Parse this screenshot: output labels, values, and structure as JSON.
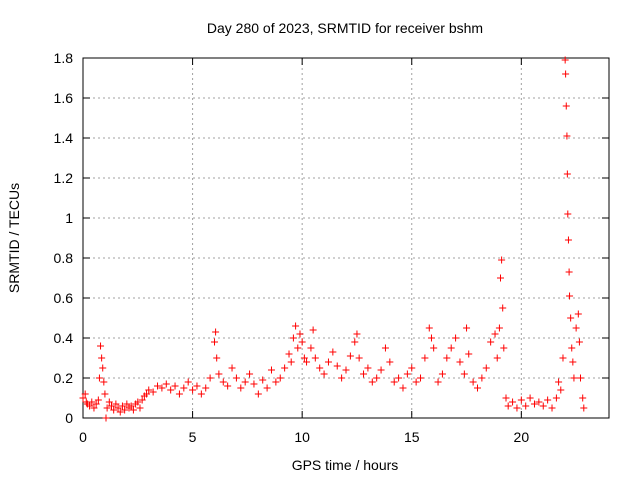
{
  "chart_data": {
    "type": "scatter",
    "title": "Day 280 of 2023, SRMTID for receiver bshm",
    "xlabel": "GPS time / hours",
    "ylabel": "SRMTID / TECUs",
    "xlim": [
      0,
      24.0
    ],
    "ylim": [
      0,
      1.8
    ],
    "xticks": [
      0,
      5,
      10,
      15,
      20
    ],
    "xtick_labels": [
      "0",
      "5",
      "10",
      "15",
      "20"
    ],
    "yticks": [
      0,
      0.2,
      0.4,
      0.6,
      0.8,
      1,
      1.2,
      1.4,
      1.6,
      1.8
    ],
    "ytick_labels": [
      "0",
      "0.2",
      "0.4",
      "0.6",
      "0.8",
      "1",
      "1.2",
      "1.4",
      "1.6",
      "1.8"
    ],
    "grid": true,
    "marker": "+",
    "color": "#ff0000",
    "series": [
      {
        "name": "SRMTID",
        "points": [
          [
            0.0,
            0.1
          ],
          [
            0.1,
            0.12
          ],
          [
            0.15,
            0.08
          ],
          [
            0.2,
            0.07
          ],
          [
            0.3,
            0.06
          ],
          [
            0.4,
            0.08
          ],
          [
            0.5,
            0.05
          ],
          [
            0.6,
            0.07
          ],
          [
            0.7,
            0.09
          ],
          [
            0.75,
            0.2
          ],
          [
            0.8,
            0.36
          ],
          [
            0.85,
            0.3
          ],
          [
            0.9,
            0.25
          ],
          [
            0.95,
            0.18
          ],
          [
            1.0,
            0.12
          ],
          [
            1.05,
            0.0
          ],
          [
            1.1,
            0.05
          ],
          [
            1.2,
            0.08
          ],
          [
            1.3,
            0.06
          ],
          [
            1.4,
            0.04
          ],
          [
            1.5,
            0.07
          ],
          [
            1.6,
            0.05
          ],
          [
            1.7,
            0.03
          ],
          [
            1.8,
            0.06
          ],
          [
            1.9,
            0.04
          ],
          [
            2.0,
            0.07
          ],
          [
            2.1,
            0.05
          ],
          [
            2.2,
            0.06
          ],
          [
            2.3,
            0.04
          ],
          [
            2.4,
            0.07
          ],
          [
            2.5,
            0.08
          ],
          [
            2.6,
            0.05
          ],
          [
            2.7,
            0.09
          ],
          [
            2.8,
            0.11
          ],
          [
            2.9,
            0.12
          ],
          [
            3.0,
            0.14
          ],
          [
            3.2,
            0.13
          ],
          [
            3.4,
            0.16
          ],
          [
            3.6,
            0.15
          ],
          [
            3.8,
            0.17
          ],
          [
            4.0,
            0.14
          ],
          [
            4.2,
            0.16
          ],
          [
            4.4,
            0.12
          ],
          [
            4.6,
            0.15
          ],
          [
            4.8,
            0.18
          ],
          [
            5.0,
            0.14
          ],
          [
            5.2,
            0.16
          ],
          [
            5.4,
            0.12
          ],
          [
            5.6,
            0.15
          ],
          [
            5.8,
            0.2
          ],
          [
            6.0,
            0.38
          ],
          [
            6.05,
            0.43
          ],
          [
            6.1,
            0.3
          ],
          [
            6.2,
            0.22
          ],
          [
            6.4,
            0.18
          ],
          [
            6.6,
            0.16
          ],
          [
            6.8,
            0.25
          ],
          [
            7.0,
            0.2
          ],
          [
            7.2,
            0.15
          ],
          [
            7.4,
            0.18
          ],
          [
            7.6,
            0.22
          ],
          [
            7.8,
            0.17
          ],
          [
            8.0,
            0.12
          ],
          [
            8.2,
            0.19
          ],
          [
            8.4,
            0.15
          ],
          [
            8.6,
            0.24
          ],
          [
            8.8,
            0.18
          ],
          [
            9.0,
            0.2
          ],
          [
            9.2,
            0.25
          ],
          [
            9.4,
            0.32
          ],
          [
            9.5,
            0.28
          ],
          [
            9.6,
            0.4
          ],
          [
            9.7,
            0.46
          ],
          [
            9.8,
            0.35
          ],
          [
            9.9,
            0.42
          ],
          [
            10.0,
            0.38
          ],
          [
            10.1,
            0.3
          ],
          [
            10.2,
            0.28
          ],
          [
            10.4,
            0.35
          ],
          [
            10.5,
            0.44
          ],
          [
            10.6,
            0.3
          ],
          [
            10.8,
            0.25
          ],
          [
            11.0,
            0.22
          ],
          [
            11.2,
            0.28
          ],
          [
            11.4,
            0.33
          ],
          [
            11.6,
            0.26
          ],
          [
            11.8,
            0.2
          ],
          [
            12.0,
            0.24
          ],
          [
            12.2,
            0.31
          ],
          [
            12.4,
            0.38
          ],
          [
            12.5,
            0.42
          ],
          [
            12.6,
            0.3
          ],
          [
            12.8,
            0.22
          ],
          [
            13.0,
            0.25
          ],
          [
            13.2,
            0.18
          ],
          [
            13.4,
            0.2
          ],
          [
            13.6,
            0.24
          ],
          [
            13.8,
            0.35
          ],
          [
            14.0,
            0.28
          ],
          [
            14.2,
            0.18
          ],
          [
            14.4,
            0.2
          ],
          [
            14.6,
            0.15
          ],
          [
            14.8,
            0.22
          ],
          [
            15.0,
            0.25
          ],
          [
            15.2,
            0.18
          ],
          [
            15.4,
            0.2
          ],
          [
            15.6,
            0.3
          ],
          [
            15.8,
            0.45
          ],
          [
            15.9,
            0.4
          ],
          [
            16.0,
            0.35
          ],
          [
            16.2,
            0.18
          ],
          [
            16.4,
            0.22
          ],
          [
            16.6,
            0.3
          ],
          [
            16.8,
            0.35
          ],
          [
            17.0,
            0.4
          ],
          [
            17.2,
            0.28
          ],
          [
            17.4,
            0.22
          ],
          [
            17.5,
            0.45
          ],
          [
            17.6,
            0.32
          ],
          [
            17.8,
            0.18
          ],
          [
            18.0,
            0.15
          ],
          [
            18.2,
            0.2
          ],
          [
            18.4,
            0.25
          ],
          [
            18.6,
            0.38
          ],
          [
            18.8,
            0.42
          ],
          [
            18.9,
            0.3
          ],
          [
            19.0,
            0.45
          ],
          [
            19.05,
            0.7
          ],
          [
            19.1,
            0.79
          ],
          [
            19.15,
            0.55
          ],
          [
            19.2,
            0.35
          ],
          [
            19.3,
            0.1
          ],
          [
            19.4,
            0.06
          ],
          [
            19.6,
            0.08
          ],
          [
            19.8,
            0.05
          ],
          [
            20.0,
            0.09
          ],
          [
            20.2,
            0.06
          ],
          [
            20.4,
            0.1
          ],
          [
            20.6,
            0.07
          ],
          [
            20.8,
            0.08
          ],
          [
            21.0,
            0.06
          ],
          [
            21.2,
            0.09
          ],
          [
            21.4,
            0.05
          ],
          [
            21.6,
            0.1
          ],
          [
            21.7,
            0.18
          ],
          [
            21.8,
            0.14
          ],
          [
            21.9,
            0.3
          ],
          [
            22.0,
            1.79
          ],
          [
            22.02,
            1.72
          ],
          [
            22.05,
            1.56
          ],
          [
            22.08,
            1.41
          ],
          [
            22.1,
            1.22
          ],
          [
            22.12,
            1.02
          ],
          [
            22.15,
            0.89
          ],
          [
            22.18,
            0.73
          ],
          [
            22.2,
            0.61
          ],
          [
            22.25,
            0.5
          ],
          [
            22.3,
            0.35
          ],
          [
            22.35,
            0.28
          ],
          [
            22.4,
            0.2
          ],
          [
            22.5,
            0.45
          ],
          [
            22.6,
            0.52
          ],
          [
            22.65,
            0.38
          ],
          [
            22.7,
            0.2
          ],
          [
            22.8,
            0.1
          ],
          [
            22.85,
            0.05
          ]
        ]
      }
    ]
  }
}
